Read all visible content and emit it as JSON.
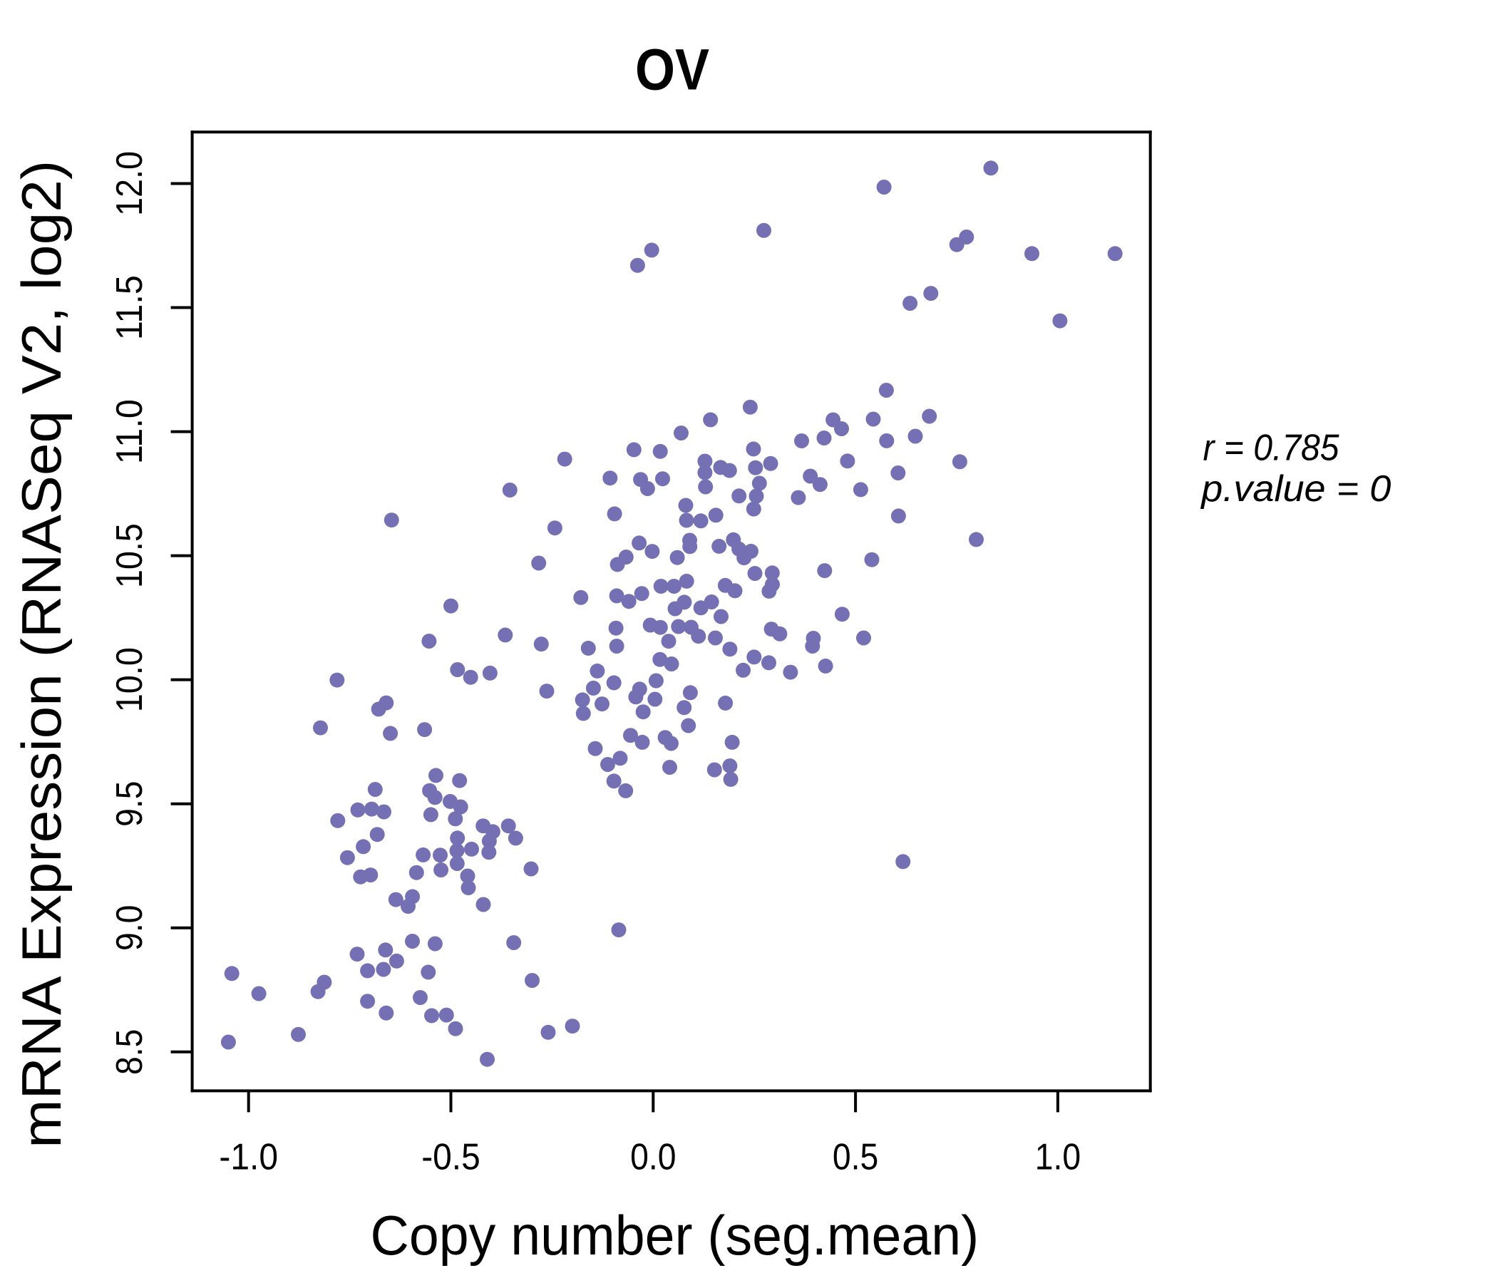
{
  "title": "OV",
  "colors": {
    "title": "#7570B3",
    "point": "#7570B3",
    "axis": "#000000"
  },
  "annotation": {
    "line1_prefix": "r",
    "line1_value": "0.785",
    "line2_prefix": "p.value",
    "line2_value": "0",
    "line1": "r = 0.785",
    "line2": "p.value = 0"
  },
  "chart_data": {
    "type": "scatter",
    "title": "OV",
    "xlabel": "Copy number (seg.mean)",
    "ylabel": "mRNA Expression (RNASeq V2, log2)",
    "x_ticks": [
      -1.0,
      -0.5,
      0.0,
      0.5,
      1.0
    ],
    "x_tick_labels": [
      "-1.0",
      "-0.5",
      "0.0",
      "0.5",
      "1.0"
    ],
    "y_ticks": [
      8.5,
      9.0,
      9.5,
      10.0,
      10.5,
      11.0,
      11.5,
      12.0
    ],
    "y_tick_labels": [
      "8.5",
      "9.0",
      "9.5",
      "10.0",
      "10.5",
      "11.0",
      "11.5",
      "12.0"
    ],
    "xlim": [
      -1.139,
      1.229
    ],
    "ylim": [
      8.343,
      12.208
    ],
    "grid": false,
    "legend": null,
    "marker": {
      "shape": "circle",
      "radius_px": 10.5
    },
    "n_points": 226,
    "points": [
      [
        -0.0386,
        11.6702
      ],
      [
        -0.0037,
        11.7317
      ],
      [
        0.5705,
        11.9856
      ],
      [
        0.2734,
        11.811
      ],
      [
        0.6348,
        11.5174
      ],
      [
        0.8346,
        12.0623
      ],
      [
        0.7743,
        11.7845
      ],
      [
        0.7504,
        11.7538
      ],
      [
        0.9359,
        11.7176
      ],
      [
        1.1415,
        11.7176
      ],
      [
        0.6862,
        11.5573
      ],
      [
        1.0053,
        11.4467
      ],
      [
        -0.6466,
        10.6437
      ],
      [
        -0.2186,
        10.8893
      ],
      [
        -0.3541,
        10.7647
      ],
      [
        -0.0476,
        10.9273
      ],
      [
        0.0174,
        10.9204
      ],
      [
        -0.1066,
        10.8129
      ],
      [
        -0.0312,
        10.8072
      ],
      [
        -0.0139,
        10.7704
      ],
      [
        0.0233,
        10.81
      ],
      [
        -0.0955,
        10.6687
      ],
      [
        -0.243,
        10.6118
      ],
      [
        -0.2829,
        10.4702
      ],
      [
        -0.0884,
        10.4647
      ],
      [
        -0.0669,
        10.4946
      ],
      [
        -0.0347,
        10.5512
      ],
      [
        -0.0025,
        10.5173
      ],
      [
        -0.5,
        10.2975
      ],
      [
        -0.1788,
        10.3314
      ],
      [
        -0.0902,
        10.3383
      ],
      [
        -0.0601,
        10.3159
      ],
      [
        -0.0284,
        10.3475
      ],
      [
        0.0192,
        10.3768
      ],
      [
        0.0805,
        10.7029
      ],
      [
        0.0823,
        10.6426
      ],
      [
        0.1177,
        10.6403
      ],
      [
        0.1549,
        10.6632
      ],
      [
        0.0902,
        10.5621
      ],
      [
        0.0906,
        10.5368
      ],
      [
        0.0595,
        10.4926
      ],
      [
        0.1628,
        10.538
      ],
      [
        0.1982,
        10.5641
      ],
      [
        0.2121,
        10.7408
      ],
      [
        0.2479,
        10.9301
      ],
      [
        0.2528,
        10.8546
      ],
      [
        0.2902,
        10.8715
      ],
      [
        0.2625,
        10.7919
      ],
      [
        0.2549,
        10.7402
      ],
      [
        0.2484,
        10.6882
      ],
      [
        0.3587,
        10.7342
      ],
      [
        0.3668,
        10.9629
      ],
      [
        0.5763,
        11.1669
      ],
      [
        0.4445,
        11.0476
      ],
      [
        0.4655,
        11.0117
      ],
      [
        0.4223,
        10.9744
      ],
      [
        0.5439,
        11.0505
      ],
      [
        0.577,
        10.9632
      ],
      [
        0.6478,
        10.9816
      ],
      [
        0.2398,
        11.0988
      ],
      [
        0.1416,
        11.0479
      ],
      [
        0.0691,
        10.9945
      ],
      [
        0.4803,
        10.8816
      ],
      [
        0.3883,
        10.8207
      ],
      [
        0.4124,
        10.7871
      ],
      [
        0.5129,
        10.7664
      ],
      [
        0.6052,
        10.8336
      ],
      [
        0.1279,
        10.881
      ],
      [
        0.1279,
        10.835
      ],
      [
        0.1667,
        10.8557
      ],
      [
        0.1885,
        10.8434
      ],
      [
        0.1293,
        10.7776
      ],
      [
        0.2245,
        10.4914
      ],
      [
        0.0826,
        10.3972
      ],
      [
        0.0514,
        10.3768
      ],
      [
        0.0768,
        10.3125
      ],
      [
        0.0541,
        10.2863
      ],
      [
        0.1781,
        10.3803
      ],
      [
        0.2021,
        10.3587
      ],
      [
        0.1443,
        10.3136
      ],
      [
        0.1179,
        10.2898
      ],
      [
        0.1677,
        10.2547
      ],
      [
        0.2119,
        10.5271
      ],
      [
        0.2417,
        10.5179
      ],
      [
        0.2514,
        10.4285
      ],
      [
        0.2942,
        10.4305
      ],
      [
        0.2946,
        10.3843
      ],
      [
        0.2865,
        10.357
      ],
      [
        0.4237,
        10.4397
      ],
      [
        0.4671,
        10.2642
      ],
      [
        0.2921,
        10.2041
      ],
      [
        0.3129,
        10.1849
      ],
      [
        0.5403,
        10.484
      ],
      [
        0.6062,
        10.6601
      ],
      [
        0.7578,
        10.8787
      ],
      [
        0.7984,
        10.5653
      ],
      [
        0.6825,
        11.062
      ],
      [
        0.0625,
        10.2145
      ],
      [
        0.0937,
        10.2116
      ],
      [
        0.1119,
        10.1754
      ],
      [
        0.1536,
        10.1685
      ],
      [
        0.1896,
        10.1234
      ],
      [
        0.2493,
        10.0915
      ],
      [
        0.2223,
        10.0384
      ],
      [
        0.1785,
        9.9059
      ],
      [
        0.0918,
        9.9479
      ],
      [
        0.0765,
        9.8878
      ],
      [
        0.3959,
        10.1671
      ],
      [
        0.3938,
        10.1355
      ],
      [
        0.2858,
        10.0685
      ],
      [
        0.3393,
        10.0303
      ],
      [
        0.426,
        10.0553
      ],
      [
        0.5201,
        10.1685
      ],
      [
        0.087,
        9.8152
      ],
      [
        0.1952,
        9.7479
      ],
      [
        0.1515,
        9.637
      ],
      [
        0.1896,
        9.6528
      ],
      [
        0.1917,
        9.5985
      ],
      [
        0.0444,
        9.7433
      ],
      [
        0.0409,
        9.6471
      ],
      [
        -0.5539,
        10.1556
      ],
      [
        -0.7814,
        9.9987
      ],
      [
        -0.6786,
        9.8815
      ],
      [
        -0.6598,
        9.9068
      ],
      [
        -0.8224,
        9.8063
      ],
      [
        -0.6496,
        9.7838
      ],
      [
        -0.565,
        9.7991
      ],
      [
        -0.6871,
        9.558
      ],
      [
        -0.7299,
        9.4753
      ],
      [
        -0.6957,
        9.4787
      ],
      [
        -0.6656,
        9.4675
      ],
      [
        -0.7796,
        9.4322
      ],
      [
        -0.682,
        9.3765
      ],
      [
        -0.3656,
        10.1803
      ],
      [
        -0.2766,
        10.1438
      ],
      [
        -0.1603,
        10.1272
      ],
      [
        -0.092,
        10.2082
      ],
      [
        -0.0902,
        10.1355
      ],
      [
        -0.0072,
        10.2202
      ],
      [
        0.0382,
        10.1553
      ],
      [
        -0.4836,
        10.0407
      ],
      [
        -0.4512,
        10.0099
      ],
      [
        -0.4033,
        10.0269
      ],
      [
        -0.1381,
        10.0352
      ],
      [
        -0.0971,
        9.9878
      ],
      [
        -0.263,
        9.9542
      ],
      [
        -0.1478,
        9.9663
      ],
      [
        -0.1748,
        9.9189
      ],
      [
        -0.1265,
        9.9025
      ],
      [
        -0.1727,
        9.8643
      ],
      [
        0.0176,
        10.211
      ],
      [
        0.0167,
        10.0818
      ],
      [
        0.0453,
        10.0637
      ],
      [
        0.0072,
        9.9962
      ],
      [
        0.0044,
        9.9215
      ],
      [
        -0.0335,
        9.9623
      ],
      [
        -0.043,
        9.9306
      ],
      [
        -0.0248,
        9.8706
      ],
      [
        -0.1432,
        9.7226
      ],
      [
        -0.1124,
        9.6586
      ],
      [
        -0.0816,
        9.6836
      ],
      [
        -0.056,
        9.7758
      ],
      [
        -0.027,
        9.7479
      ],
      [
        0.0296,
        9.7672
      ],
      [
        -0.0971,
        9.5916
      ],
      [
        -0.068,
        9.5526
      ],
      [
        -0.537,
        9.6143
      ],
      [
        -0.4785,
        9.5937
      ],
      [
        -0.5527,
        9.5531
      ],
      [
        -0.5393,
        9.5256
      ],
      [
        -0.5495,
        9.4563
      ],
      [
        -0.5018,
        9.5095
      ],
      [
        -0.4759,
        9.4876
      ],
      [
        -0.4889,
        9.4394
      ],
      [
        -0.5685,
        9.294
      ],
      [
        -0.5264,
        9.2932
      ],
      [
        -0.5245,
        9.2334
      ],
      [
        -0.5849,
        9.2228
      ],
      [
        -0.4838,
        9.3618
      ],
      [
        -0.485,
        9.311
      ],
      [
        -0.4845,
        9.2593
      ],
      [
        -0.4489,
        9.3173
      ],
      [
        -0.4586,
        9.209
      ],
      [
        -0.4568,
        9.1616
      ],
      [
        -0.636,
        9.1139
      ],
      [
        -0.595,
        9.1259
      ],
      [
        -0.6057,
        9.0866
      ],
      [
        -0.4198,
        9.0941
      ],
      [
        -0.4204,
        9.4109
      ],
      [
        -0.3962,
        9.3877
      ],
      [
        -0.405,
        9.3497
      ],
      [
        -0.4061,
        9.3046
      ],
      [
        -0.3578,
        9.4109
      ],
      [
        -0.3399,
        9.3615
      ],
      [
        -0.3018,
        9.2377
      ],
      [
        -0.7556,
        9.2831
      ],
      [
        -1.0414,
        8.816
      ],
      [
        -0.9746,
        8.7349
      ],
      [
        -0.877,
        8.5703
      ],
      [
        -1.0499,
        8.5396
      ],
      [
        -0.7317,
        8.8941
      ],
      [
        -0.6616,
        8.9108
      ],
      [
        -0.6341,
        8.8662
      ],
      [
        -0.706,
        8.8272
      ],
      [
        -0.6667,
        8.8326
      ],
      [
        -0.706,
        8.7042
      ],
      [
        -0.6598,
        8.6568
      ],
      [
        -0.5758,
        8.7191
      ],
      [
        -0.5951,
        8.9461
      ],
      [
        -0.5389,
        8.936
      ],
      [
        -0.5558,
        8.8214
      ],
      [
        -0.5476,
        8.6462
      ],
      [
        -0.5109,
        8.6485
      ],
      [
        -0.4885,
        8.5936
      ],
      [
        -0.3446,
        8.9404
      ],
      [
        -0.0851,
        8.9918
      ],
      [
        -0.2992,
        8.7881
      ],
      [
        -0.1996,
        8.6039
      ],
      [
        -0.2595,
        8.5789
      ],
      [
        -0.4101,
        8.4701
      ],
      [
        0.6173,
        9.267
      ],
      [
        -0.7232,
        9.2055
      ],
      [
        -0.6986,
        9.213
      ],
      [
        -0.7165,
        9.3273
      ],
      [
        -0.8129,
        8.7809
      ],
      [
        -0.8284,
        8.743
      ]
    ]
  }
}
